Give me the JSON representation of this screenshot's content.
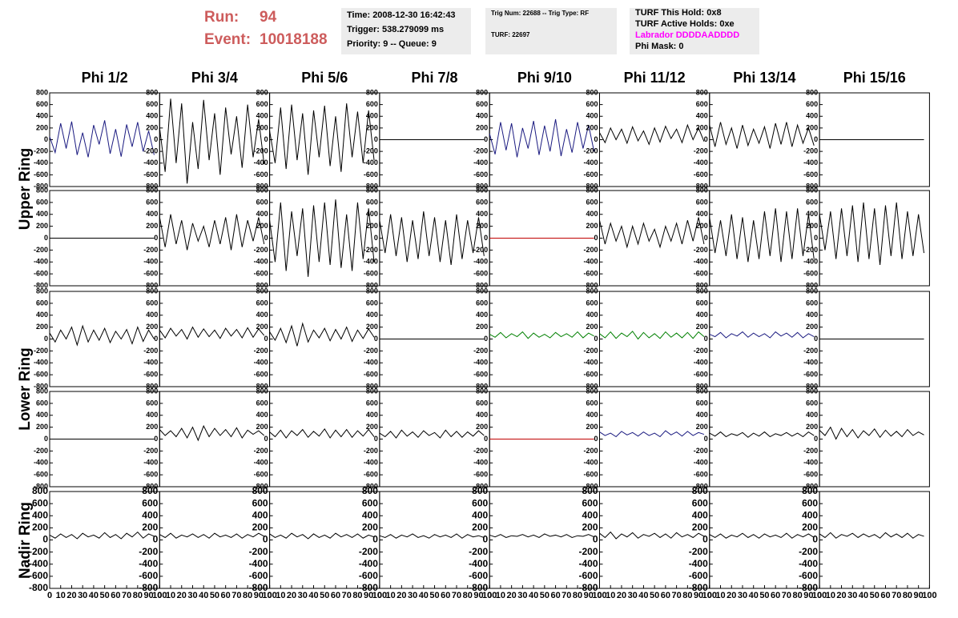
{
  "header": {
    "run_label": "Run:",
    "run": "94",
    "event_label": "Event:",
    "event": "10018188"
  },
  "info": [
    [
      "Time: 2008-12-30 16:42:43",
      "Trigger: 538.279099 ms",
      "Priority: 9 -- Queue: 9"
    ],
    [
      "Trig Num: 22688 -- Trig Type: RF",
      "TURF: 22697"
    ],
    [
      "TURF This Hold: 0x8",
      "TURF Active Holds: 0xe",
      "Labrador DDDDAADDDD",
      "Phi Mask: 0"
    ]
  ],
  "chart_data": {
    "type": "line",
    "columns": [
      "Phi 1/2",
      "Phi 3/4",
      "Phi 5/6",
      "Phi 7/8",
      "Phi 9/10",
      "Phi 11/12",
      "Phi 13/14",
      "Phi 15/16"
    ],
    "rows": [
      "Upper Ring",
      "Lower Ring",
      "Nadir Ring"
    ],
    "xlim": [
      0,
      100
    ],
    "xticks": [
      0,
      10,
      20,
      30,
      40,
      50,
      60,
      70,
      80,
      90,
      100
    ],
    "ylim": [
      -800,
      800
    ],
    "yticks": [
      -800,
      -600,
      -400,
      -200,
      0,
      200,
      400,
      600,
      800
    ],
    "x": [
      0,
      5,
      10,
      15,
      20,
      25,
      30,
      35,
      40,
      45,
      50,
      55,
      60,
      65,
      70,
      75,
      80,
      85,
      90,
      95
    ],
    "series": [
      {
        "color": "#1a1a80",
        "values": [
          50,
          -220,
          280,
          -150,
          310,
          -260,
          120,
          -300,
          250,
          -80,
          330,
          -240,
          180,
          -290,
          260,
          -120,
          300,
          -200,
          150,
          -260
        ]
      },
      {
        "color": "#000000",
        "values": [
          200,
          -550,
          700,
          -400,
          620,
          -750,
          300,
          -500,
          680,
          -350,
          450,
          -600,
          550,
          -250,
          400,
          -480,
          600,
          -300,
          350,
          -420
        ]
      },
      {
        "color": "#000000",
        "values": [
          150,
          -400,
          550,
          -500,
          600,
          -350,
          450,
          -600,
          500,
          -300,
          580,
          -450,
          400,
          -550,
          620,
          -300,
          480,
          -400,
          500,
          -350
        ]
      },
      {
        "color": "#000000",
        "values": [
          0,
          0,
          0,
          0,
          0,
          0,
          0,
          0,
          0,
          0,
          0,
          0,
          0,
          0,
          0,
          0,
          0,
          0,
          0,
          0
        ]
      },
      {
        "color": "#1a1a80",
        "values": [
          100,
          -250,
          300,
          -180,
          280,
          -300,
          200,
          -150,
          320,
          -260,
          240,
          -200,
          350,
          -280,
          180,
          -220,
          300,
          -150,
          250,
          -200
        ]
      },
      {
        "color": "#000000",
        "values": [
          120,
          -50,
          200,
          0,
          180,
          -60,
          220,
          -20,
          150,
          -80,
          200,
          -40,
          230,
          20,
          180,
          -50,
          250,
          0,
          200,
          -30
        ]
      },
      {
        "color": "#000000",
        "values": [
          250,
          -120,
          300,
          -80,
          200,
          -150,
          250,
          -100,
          180,
          -60,
          220,
          -150,
          280,
          -80,
          300,
          -120,
          250,
          -60,
          200,
          -100
        ]
      },
      {
        "color": "#000000",
        "values": [
          0,
          0,
          0,
          0,
          0,
          0,
          0,
          0,
          0,
          0,
          0,
          0,
          0,
          0,
          0,
          0,
          0,
          0,
          0,
          0
        ]
      },
      {
        "color": "#000000",
        "values": [
          0,
          0,
          0,
          0,
          0,
          0,
          0,
          0,
          0,
          0,
          0,
          0,
          0,
          0,
          0,
          0,
          0,
          0,
          0,
          0
        ]
      },
      {
        "color": "#000000",
        "values": [
          350,
          -150,
          400,
          -100,
          300,
          -200,
          250,
          -50,
          200,
          -150,
          300,
          -100,
          350,
          -200,
          400,
          -150,
          300,
          -50,
          350,
          -100
        ]
      },
      {
        "color": "#000000",
        "values": [
          300,
          -400,
          600,
          -550,
          450,
          -300,
          500,
          -650,
          550,
          -400,
          600,
          -450,
          650,
          -500,
          400,
          -550,
          600,
          -350,
          500,
          -400
        ]
      },
      {
        "color": "#000000",
        "values": [
          300,
          -250,
          400,
          -300,
          350,
          -400,
          300,
          -350,
          450,
          -300,
          350,
          -400,
          300,
          -450,
          400,
          -350,
          300,
          -250,
          350,
          -300
        ]
      },
      {
        "color": "#c00000",
        "values": [
          0,
          0,
          0,
          0,
          0,
          0,
          0,
          0,
          0,
          0,
          0,
          0,
          0,
          0,
          0,
          0,
          0,
          0,
          0,
          0
        ]
      },
      {
        "color": "#000000",
        "values": [
          300,
          -100,
          250,
          -50,
          200,
          -150,
          200,
          -100,
          250,
          -50,
          150,
          -150,
          200,
          -50,
          250,
          -100,
          300,
          -50,
          350,
          -100
        ]
      },
      {
        "color": "#000000",
        "values": [
          350,
          -250,
          300,
          -300,
          400,
          -350,
          350,
          -400,
          300,
          -350,
          450,
          -300,
          500,
          -400,
          450,
          -350,
          500,
          -300,
          400,
          -350
        ]
      },
      {
        "color": "#000000",
        "values": [
          400,
          -200,
          450,
          -350,
          500,
          -300,
          550,
          -400,
          600,
          -350,
          500,
          -450,
          550,
          -300,
          600,
          -350,
          450,
          -300,
          400,
          -250
        ]
      },
      {
        "color": "#000000",
        "values": [
          100,
          -50,
          150,
          0,
          200,
          -100,
          220,
          -50,
          150,
          -20,
          180,
          -60,
          130,
          0,
          160,
          -80,
          200,
          -40,
          150,
          0
        ]
      },
      {
        "color": "#000000",
        "values": [
          150,
          20,
          180,
          50,
          160,
          0,
          200,
          30,
          170,
          40,
          150,
          10,
          180,
          50,
          160,
          20,
          190,
          30,
          170,
          60
        ]
      },
      {
        "color": "#000000",
        "values": [
          120,
          -20,
          180,
          -60,
          220,
          -120,
          260,
          -50,
          150,
          20,
          180,
          -30,
          160,
          0,
          200,
          -40,
          150,
          10,
          170,
          30
        ]
      },
      {
        "color": "#000000",
        "values": [
          0,
          0,
          0,
          0,
          0,
          0,
          0,
          0,
          0,
          0,
          0,
          0,
          0,
          0,
          0,
          0,
          0,
          0,
          0,
          0
        ]
      },
      {
        "color": "#008000",
        "values": [
          80,
          30,
          110,
          20,
          90,
          40,
          120,
          10,
          100,
          30,
          80,
          20,
          110,
          40,
          90,
          30,
          120,
          20,
          100,
          50
        ]
      },
      {
        "color": "#008000",
        "values": [
          90,
          20,
          120,
          10,
          100,
          40,
          130,
          0,
          110,
          20,
          90,
          10,
          120,
          30,
          100,
          20,
          110,
          10,
          120,
          40
        ]
      },
      {
        "color": "#1a1a80",
        "values": [
          80,
          40,
          110,
          20,
          90,
          50,
          120,
          30,
          100,
          40,
          90,
          20,
          120,
          50,
          100,
          30,
          110,
          20,
          90,
          40
        ]
      },
      {
        "color": "#000000",
        "values": [
          0,
          0,
          0,
          0,
          0,
          0,
          0,
          0,
          0,
          0,
          0,
          0,
          0,
          0,
          0,
          0,
          0,
          0,
          0,
          0
        ]
      },
      {
        "color": "#000000",
        "values": [
          0,
          0,
          0,
          0,
          0,
          0,
          0,
          0,
          0,
          0,
          0,
          0,
          0,
          0,
          0,
          0,
          0,
          0,
          0,
          0
        ]
      },
      {
        "color": "#000000",
        "values": [
          160,
          60,
          140,
          40,
          180,
          20,
          200,
          -20,
          220,
          40,
          180,
          60,
          160,
          40,
          190,
          20,
          150,
          80,
          140,
          60
        ]
      },
      {
        "color": "#000000",
        "values": [
          120,
          40,
          150,
          20,
          140,
          60,
          160,
          30,
          130,
          50,
          170,
          20,
          150,
          40,
          160,
          30,
          140,
          50,
          160,
          40
        ]
      },
      {
        "color": "#000000",
        "values": [
          100,
          40,
          130,
          20,
          150,
          50,
          120,
          30,
          140,
          60,
          110,
          20,
          150,
          40,
          130,
          30,
          120,
          50,
          140,
          60
        ]
      },
      {
        "color": "#c00000",
        "values": [
          0,
          0,
          0,
          0,
          0,
          0,
          0,
          0,
          0,
          0,
          0,
          0,
          0,
          0,
          0,
          0,
          0,
          0,
          0,
          0
        ]
      },
      {
        "color": "#1a1a80",
        "values": [
          120,
          60,
          100,
          40,
          130,
          70,
          110,
          50,
          120,
          60,
          100,
          40,
          140,
          70,
          120,
          50,
          130,
          60,
          110,
          80
        ]
      },
      {
        "color": "#000000",
        "values": [
          100,
          50,
          120,
          40,
          90,
          60,
          110,
          30,
          100,
          50,
          120,
          40,
          90,
          60,
          110,
          50,
          100,
          40,
          120,
          60
        ]
      },
      {
        "color": "#000000",
        "values": [
          150,
          60,
          200,
          0,
          180,
          40,
          160,
          20,
          140,
          60,
          170,
          30,
          150,
          50,
          130,
          40,
          160,
          60,
          120,
          70
        ]
      },
      {
        "color": "#000000",
        "values": [
          80,
          30,
          100,
          40,
          90,
          20,
          110,
          50,
          80,
          30,
          120,
          40,
          90,
          20,
          110,
          50,
          130,
          30,
          100,
          60
        ]
      },
      {
        "color": "#000000",
        "values": [
          90,
          40,
          110,
          30,
          80,
          50,
          100,
          40,
          90,
          30,
          110,
          50,
          80,
          40,
          100,
          30,
          90,
          50,
          110,
          60
        ]
      },
      {
        "color": "#000000",
        "values": [
          100,
          40,
          80,
          30,
          110,
          50,
          90,
          20,
          100,
          40,
          80,
          30,
          110,
          50,
          90,
          40,
          100,
          30,
          80,
          50
        ]
      },
      {
        "color": "#000000",
        "values": [
          70,
          40,
          90,
          30,
          80,
          50,
          100,
          40,
          70,
          30,
          90,
          50,
          80,
          40,
          100,
          30,
          90,
          50,
          70,
          40
        ]
      },
      {
        "color": "#000000",
        "values": [
          80,
          50,
          90,
          40,
          70,
          60,
          90,
          50,
          80,
          40,
          100,
          60,
          80,
          50,
          90,
          40,
          70,
          60,
          90,
          50
        ]
      },
      {
        "color": "#000000",
        "values": [
          110,
          40,
          130,
          20,
          100,
          50,
          120,
          30,
          90,
          60,
          110,
          40,
          100,
          30,
          120,
          50,
          90,
          40,
          110,
          60
        ]
      },
      {
        "color": "#000000",
        "values": [
          90,
          40,
          100,
          30,
          80,
          50,
          110,
          40,
          90,
          30,
          100,
          50,
          80,
          40,
          110,
          30,
          90,
          50,
          100,
          40
        ]
      },
      {
        "color": "#000000",
        "values": [
          100,
          40,
          120,
          30,
          90,
          60,
          110,
          40,
          100,
          50,
          90,
          30,
          120,
          50,
          100,
          40,
          110,
          30,
          90,
          60
        ]
      }
    ]
  }
}
